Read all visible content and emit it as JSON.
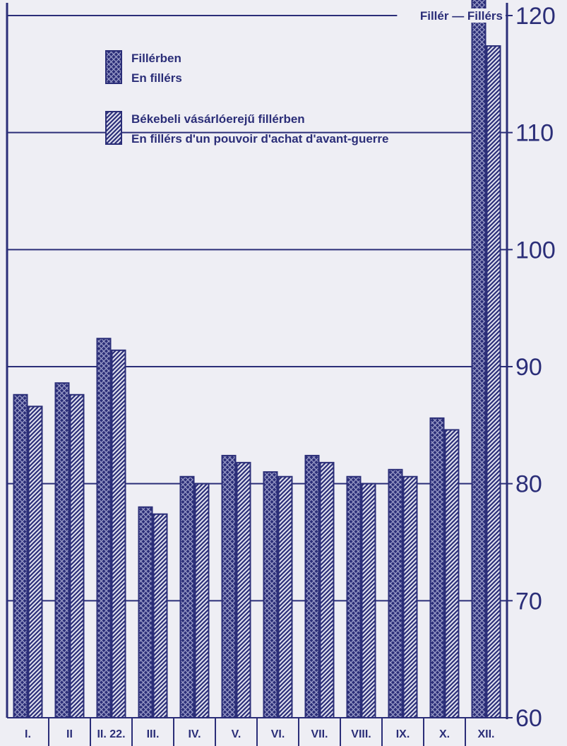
{
  "chart_data": {
    "type": "bar",
    "ylabel": "Fillér — Fillérs",
    "ylim": [
      60,
      120
    ],
    "yticks": [
      60,
      70,
      80,
      90,
      100,
      110,
      120
    ],
    "grid": true,
    "legend_position": "top-left",
    "categories": [
      "I.",
      "II",
      "II. 22.",
      "III.",
      "IV.",
      "V.",
      "VI.",
      "VII.",
      "VIII.",
      "IX.",
      "X.",
      "XII."
    ],
    "series": [
      {
        "name": "Fillérben",
        "name_fr": "En fillérs",
        "pattern": "crosshatch",
        "values": [
          87.6,
          88.6,
          92.4,
          78.0,
          80.6,
          82.4,
          81.0,
          82.4,
          80.6,
          81.2,
          85.6,
          121.6
        ]
      },
      {
        "name": "Békebeli vásárlóerejű fillérben",
        "name_fr": "En fillérs d'un pouvoir d'achat d'avant-guerre",
        "pattern": "diagonal",
        "values": [
          86.6,
          87.6,
          91.4,
          77.4,
          80.0,
          81.8,
          80.6,
          81.8,
          80.0,
          80.6,
          84.6,
          117.4
        ]
      }
    ],
    "colors": {
      "ink": "#2b2e78",
      "background": "#eeeef4"
    }
  }
}
